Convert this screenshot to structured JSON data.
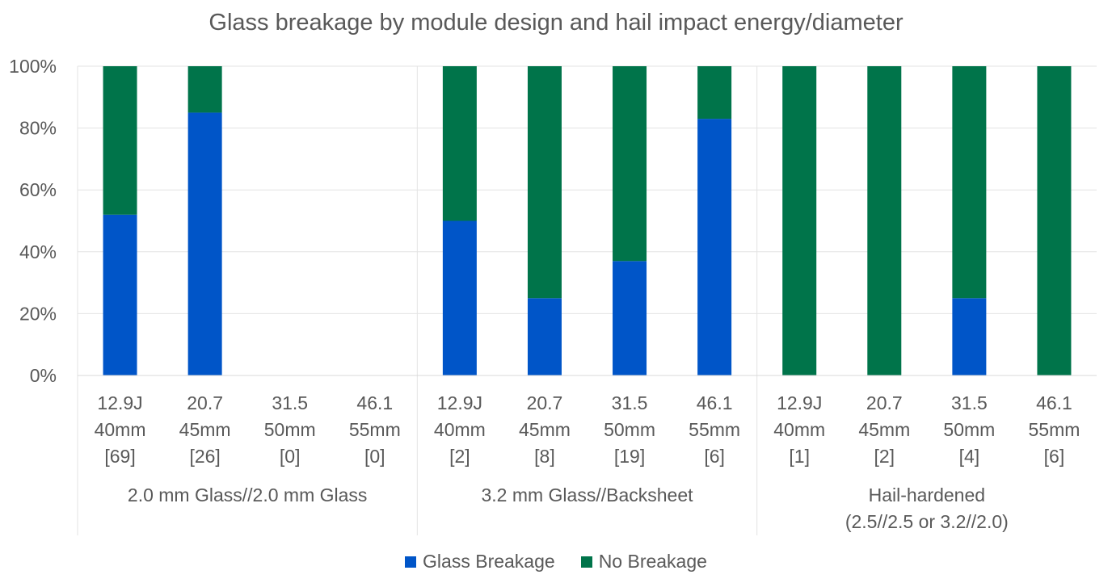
{
  "chart_data": {
    "type": "bar",
    "stacked": true,
    "title": "Glass breakage by module design and hail impact energy/diameter",
    "xlabel": "",
    "ylabel": "",
    "ylim": [
      0,
      100
    ],
    "y_ticks": [
      "0%",
      "20%",
      "40%",
      "60%",
      "80%",
      "100%"
    ],
    "y_tick_values": [
      0,
      20,
      40,
      60,
      80,
      100
    ],
    "grid": true,
    "legend_position": "bottom",
    "groups": [
      {
        "label": [
          "2.0 mm Glass//2.0 mm Glass"
        ],
        "categories": [
          {
            "lines": [
              "12.9J",
              "40mm",
              "[69]"
            ],
            "glass_breakage": 52,
            "no_breakage": 48
          },
          {
            "lines": [
              "20.7",
              "45mm",
              "[26]"
            ],
            "glass_breakage": 85,
            "no_breakage": 15
          },
          {
            "lines": [
              "31.5",
              "50mm",
              "[0]"
            ],
            "glass_breakage": 0,
            "no_breakage": 0
          },
          {
            "lines": [
              "46.1",
              "55mm",
              "[0]"
            ],
            "glass_breakage": 0,
            "no_breakage": 0
          }
        ]
      },
      {
        "label": [
          "3.2 mm Glass//Backsheet"
        ],
        "categories": [
          {
            "lines": [
              "12.9J",
              "40mm",
              "[2]"
            ],
            "glass_breakage": 50,
            "no_breakage": 50
          },
          {
            "lines": [
              "20.7",
              "45mm",
              "[8]"
            ],
            "glass_breakage": 25,
            "no_breakage": 75
          },
          {
            "lines": [
              "31.5",
              "50mm",
              "[19]"
            ],
            "glass_breakage": 37,
            "no_breakage": 63
          },
          {
            "lines": [
              "46.1",
              "55mm",
              "[6]"
            ],
            "glass_breakage": 83,
            "no_breakage": 17
          }
        ]
      },
      {
        "label": [
          "Hail-hardened",
          "(2.5//2.5 or 3.2//2.0)"
        ],
        "categories": [
          {
            "lines": [
              "12.9J",
              "40mm",
              "[1]"
            ],
            "glass_breakage": 0,
            "no_breakage": 100
          },
          {
            "lines": [
              "20.7",
              "45mm",
              "[2]"
            ],
            "glass_breakage": 0,
            "no_breakage": 100
          },
          {
            "lines": [
              "31.5",
              "50mm",
              "[4]"
            ],
            "glass_breakage": 25,
            "no_breakage": 75
          },
          {
            "lines": [
              "46.1",
              "55mm",
              "[6]"
            ],
            "glass_breakage": 0,
            "no_breakage": 100
          }
        ]
      }
    ],
    "series": [
      {
        "name": "Glass Breakage",
        "key": "glass_breakage",
        "color": "#0055c8"
      },
      {
        "name": "No Breakage",
        "key": "no_breakage",
        "color": "#00744a"
      }
    ]
  }
}
